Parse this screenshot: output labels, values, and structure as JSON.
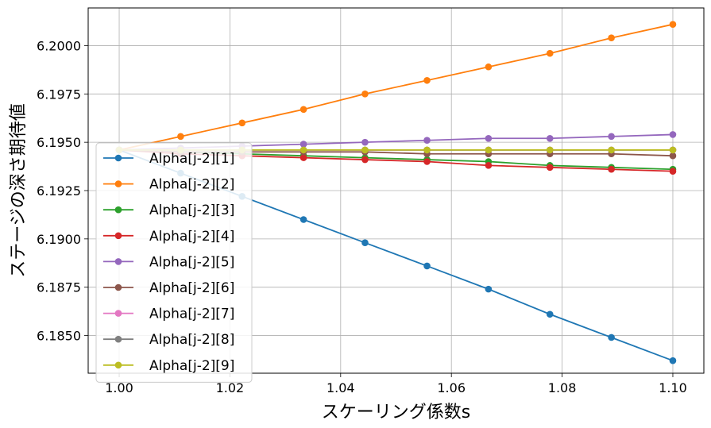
{
  "chart_data": {
    "type": "line",
    "title": "",
    "xlabel": "スケーリング係数s",
    "ylabel": "ステージの深さ期待値",
    "xlim": [
      0.9944,
      1.1056
    ],
    "ylim": [
      6.18305,
      6.20195
    ],
    "xticks": [
      "1.00",
      "1.02",
      "1.04",
      "1.06",
      "1.08",
      "1.10"
    ],
    "yticks": [
      "6.1850",
      "6.1875",
      "6.1900",
      "6.1925",
      "6.1950",
      "6.1975",
      "6.2000"
    ],
    "grid": true,
    "legend_position": "lower-left",
    "x": [
      1.0,
      1.0111,
      1.0222,
      1.0333,
      1.0444,
      1.0556,
      1.0667,
      1.0778,
      1.0889,
      1.1
    ],
    "series": [
      {
        "name": "Alpha[j-2][1]",
        "color": "#1f77b4",
        "values": [
          6.1946,
          6.1934,
          6.1922,
          6.191,
          6.1898,
          6.1886,
          6.1874,
          6.1861,
          6.1849,
          6.1837
        ]
      },
      {
        "name": "Alpha[j-2][2]",
        "color": "#ff7f0e",
        "values": [
          6.1946,
          6.1953,
          6.196,
          6.1967,
          6.1975,
          6.1982,
          6.1989,
          6.1996,
          6.2004,
          6.2011
        ]
      },
      {
        "name": "Alpha[j-2][3]",
        "color": "#2ca02c",
        "values": [
          6.1946,
          6.1945,
          6.1944,
          6.1943,
          6.1942,
          6.1941,
          6.194,
          6.1938,
          6.1937,
          6.1936
        ]
      },
      {
        "name": "Alpha[j-2][4]",
        "color": "#d62728",
        "values": [
          6.1946,
          6.1944,
          6.1943,
          6.1942,
          6.1941,
          6.194,
          6.1938,
          6.1937,
          6.1936,
          6.1935
        ]
      },
      {
        "name": "Alpha[j-2][5]",
        "color": "#9467bd",
        "values": [
          6.1946,
          6.1947,
          6.1948,
          6.1949,
          6.195,
          6.1951,
          6.1952,
          6.1952,
          6.1953,
          6.1954
        ]
      },
      {
        "name": "Alpha[j-2][6]",
        "color": "#8c564b",
        "values": [
          6.1946,
          6.1945,
          6.1945,
          6.1945,
          6.1945,
          6.1944,
          6.1944,
          6.1944,
          6.1944,
          6.1943
        ]
      },
      {
        "name": "Alpha[j-2][7]",
        "color": "#e377c2",
        "values": [
          6.1946,
          6.1946,
          6.1946,
          6.1946,
          6.1946,
          6.1946,
          6.1946,
          6.1946,
          6.1946,
          6.1946
        ]
      },
      {
        "name": "Alpha[j-2][8]",
        "color": "#7f7f7f",
        "values": [
          6.1946,
          6.1946,
          6.1946,
          6.1946,
          6.1946,
          6.1946,
          6.1946,
          6.1946,
          6.1946,
          6.1946
        ]
      },
      {
        "name": "Alpha[j-2][9]",
        "color": "#bcbd22",
        "values": [
          6.1946,
          6.1946,
          6.1946,
          6.1946,
          6.1946,
          6.1946,
          6.1946,
          6.1946,
          6.1946,
          6.1946
        ]
      }
    ]
  }
}
